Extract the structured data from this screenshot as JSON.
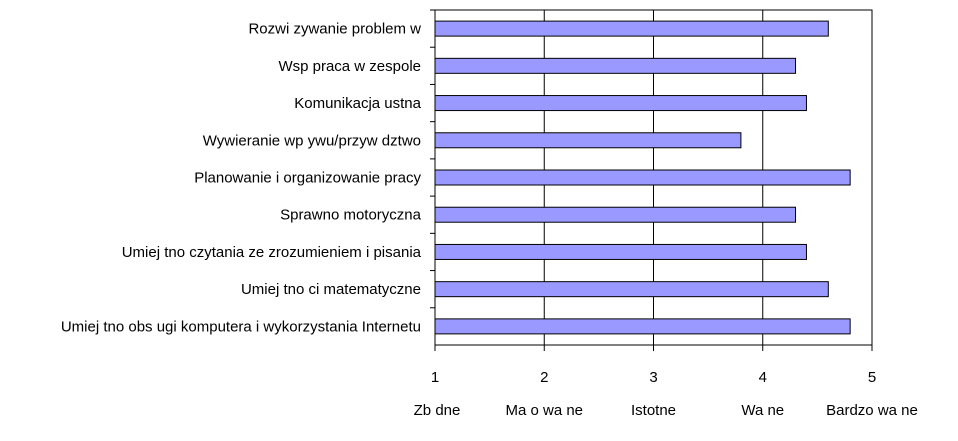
{
  "chart_data": {
    "type": "bar",
    "orientation": "horizontal",
    "title": "",
    "xlabel": "",
    "ylabel": "",
    "categories": [
      "Rozwi zywanie problem w",
      "Wsp praca w zespole",
      "Komunikacja ustna",
      "Wywieranie wp ywu/przyw dztwo",
      "Planowanie i organizowanie pracy",
      "Sprawno motoryczna",
      "Umiej tno czytania ze zrozumieniem i pisania",
      "Umiej tno ci matematyczne",
      "Umiej tno obs ugi komputera i wykorzystania Internetu"
    ],
    "values": [
      4.6,
      4.3,
      4.4,
      3.8,
      4.8,
      4.3,
      4.4,
      4.6,
      4.8
    ],
    "xlim": [
      1,
      5
    ],
    "x_ticks": [
      "1",
      "2",
      "3",
      "4",
      "5"
    ],
    "x_tick_descriptions": [
      "Zb dne",
      "Ma o wa ne",
      "Istotne",
      "Wa ne",
      "Bardzo wa ne"
    ],
    "grid": "vertical",
    "legend": "none",
    "colors": {
      "bar_fill": "#9999ff",
      "bar_stroke": "#000000",
      "grid": "#000000",
      "axis": "#000000"
    }
  }
}
